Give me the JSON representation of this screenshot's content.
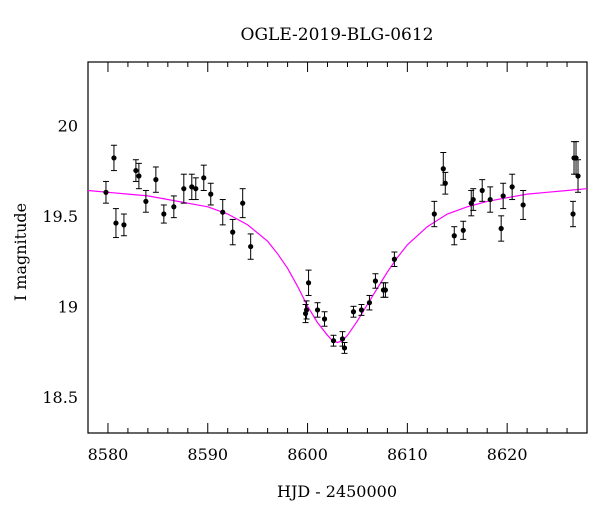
{
  "chart_data": {
    "type": "scatter",
    "title": "OGLE-2019-BLG-0612",
    "xlabel": "HJD - 2450000",
    "ylabel": "I magnitude",
    "xlim": [
      8578,
      8628
    ],
    "ylim": [
      20.35,
      18.3
    ],
    "y_inverted": true,
    "x_ticks": [
      8580,
      8590,
      8600,
      8610,
      8620
    ],
    "x_tick_labels": [
      "8580",
      "8590",
      "8600",
      "8610",
      "8620"
    ],
    "y_ticks": [
      18.5,
      19,
      19.5,
      20
    ],
    "y_tick_labels": [
      "18.5",
      "19",
      "19.5",
      "20"
    ],
    "grid": false,
    "colors": {
      "data": "#000000",
      "model": "#ff00ff"
    },
    "series": [
      {
        "kind": "points_with_errorbars",
        "x": [
          8579.8,
          8580.6,
          8580.8,
          8581.6,
          8582.8,
          8583.1,
          8583.8,
          8584.8,
          8585.6,
          8586.6,
          8587.6,
          8588.4,
          8588.8,
          8589.6,
          8590.3,
          8591.5,
          8592.5,
          8593.5,
          8594.3,
          8599.8,
          8599.9,
          8600.1,
          8601.0,
          8601.7,
          8602.6,
          8603.5,
          8603.7,
          8604.6,
          8605.4,
          8606.2,
          8606.8,
          8607.6,
          8607.8,
          8608.7,
          8612.7,
          8613.6,
          8613.8,
          8614.7,
          8615.6,
          8616.4,
          8616.6,
          8617.5,
          8618.3,
          8619.4,
          8619.6,
          8620.5,
          8621.6,
          8626.6,
          8626.7,
          8626.9,
          8627.1
        ],
        "y": [
          19.63,
          19.82,
          19.46,
          19.45,
          19.75,
          19.72,
          19.58,
          19.7,
          19.51,
          19.55,
          19.65,
          19.66,
          19.65,
          19.71,
          19.62,
          19.52,
          19.41,
          19.57,
          19.33,
          18.96,
          18.98,
          19.13,
          18.98,
          18.93,
          18.81,
          18.82,
          18.77,
          18.97,
          18.98,
          19.02,
          19.14,
          19.09,
          19.09,
          19.26,
          19.51,
          19.76,
          19.68,
          19.39,
          19.42,
          19.57,
          19.59,
          19.64,
          19.59,
          19.43,
          19.61,
          19.66,
          19.56,
          19.51,
          19.82,
          19.82,
          19.72
        ],
        "err": [
          0.06,
          0.07,
          0.08,
          0.06,
          0.06,
          0.07,
          0.06,
          0.07,
          0.05,
          0.06,
          0.08,
          0.07,
          0.06,
          0.07,
          0.06,
          0.07,
          0.07,
          0.08,
          0.07,
          0.05,
          0.05,
          0.07,
          0.04,
          0.04,
          0.03,
          0.04,
          0.03,
          0.03,
          0.03,
          0.04,
          0.04,
          0.04,
          0.04,
          0.04,
          0.07,
          0.09,
          0.06,
          0.05,
          0.05,
          0.07,
          0.06,
          0.06,
          0.07,
          0.07,
          0.07,
          0.07,
          0.08,
          0.07,
          0.09,
          0.09,
          0.09
        ]
      },
      {
        "kind": "model_curve",
        "x": [
          8578,
          8580,
          8582,
          8584,
          8586,
          8588,
          8590,
          8592,
          8594,
          8596,
          8597,
          8598,
          8599,
          8600,
          8601,
          8602,
          8602.5,
          8603,
          8603.5,
          8604,
          8605,
          8606,
          8607,
          8608,
          8609,
          8610,
          8612,
          8614,
          8616,
          8618,
          8620,
          8622,
          8624,
          8626,
          8628
        ],
        "y": [
          19.64,
          19.63,
          19.62,
          19.61,
          19.59,
          19.57,
          19.55,
          19.51,
          19.45,
          19.36,
          19.29,
          19.21,
          19.11,
          19.0,
          18.91,
          18.84,
          18.81,
          18.8,
          18.81,
          18.84,
          18.92,
          19.01,
          19.1,
          19.19,
          19.27,
          19.34,
          19.44,
          19.51,
          19.55,
          19.58,
          19.6,
          19.62,
          19.63,
          19.64,
          19.65
        ]
      }
    ]
  }
}
